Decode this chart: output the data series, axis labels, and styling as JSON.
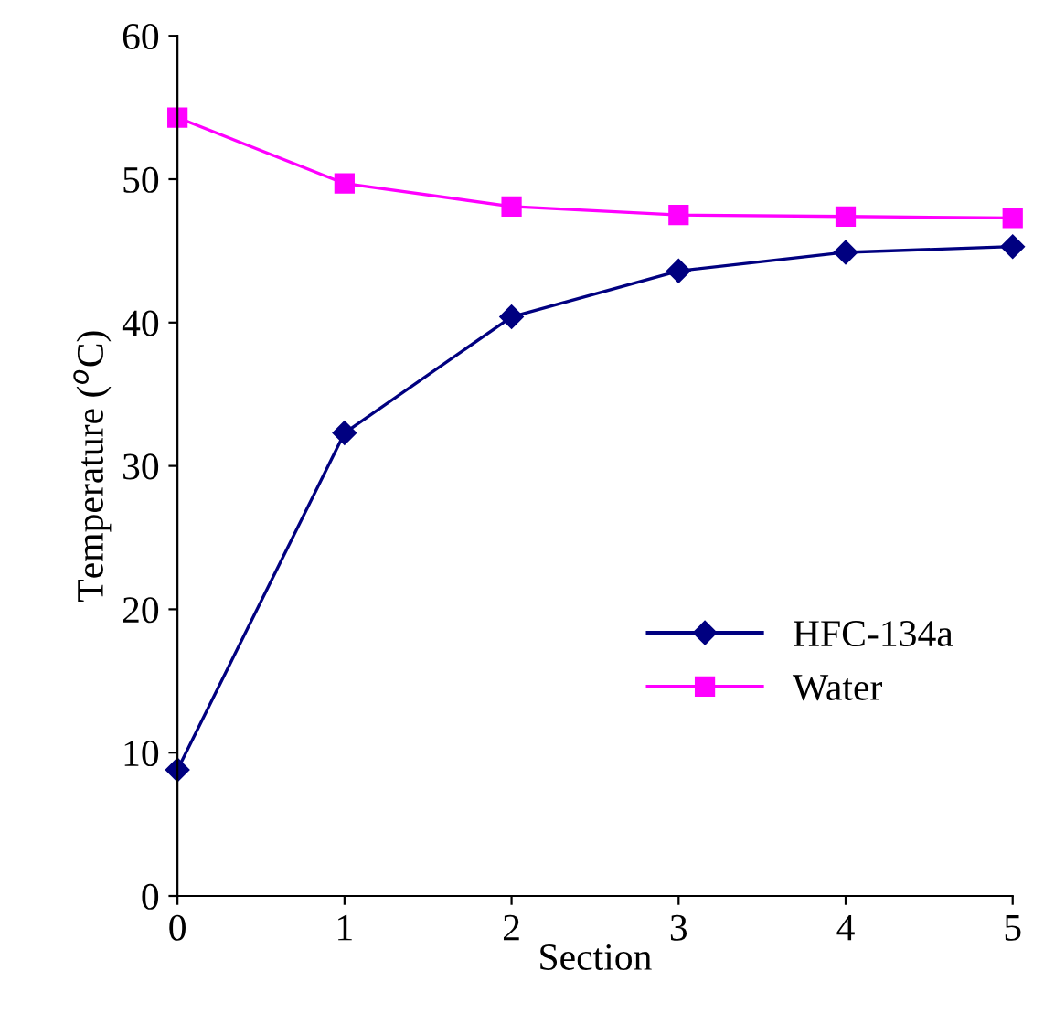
{
  "chart_data": {
    "type": "line",
    "xlabel": "Section",
    "ylabel": "Temperature ($^{o}$C)",
    "x": [
      0,
      1,
      2,
      3,
      4,
      5
    ],
    "series": [
      {
        "name": "HFC-134a",
        "color": "#000080",
        "marker": "diamond",
        "values": [
          8.8,
          32.3,
          40.4,
          43.6,
          44.9,
          45.3
        ]
      },
      {
        "name": "Water",
        "color": "#ff00ff",
        "marker": "square",
        "values": [
          54.3,
          49.7,
          48.1,
          47.5,
          47.4,
          47.3
        ]
      }
    ],
    "xlim": [
      0,
      5
    ],
    "xticks": [
      0,
      1,
      2,
      3,
      4,
      5
    ],
    "ylim": [
      0,
      60
    ],
    "yticks": [
      0,
      10,
      20,
      30,
      40,
      50,
      60
    ],
    "grid": false,
    "legend": "lower right",
    "line_style": "solid"
  }
}
